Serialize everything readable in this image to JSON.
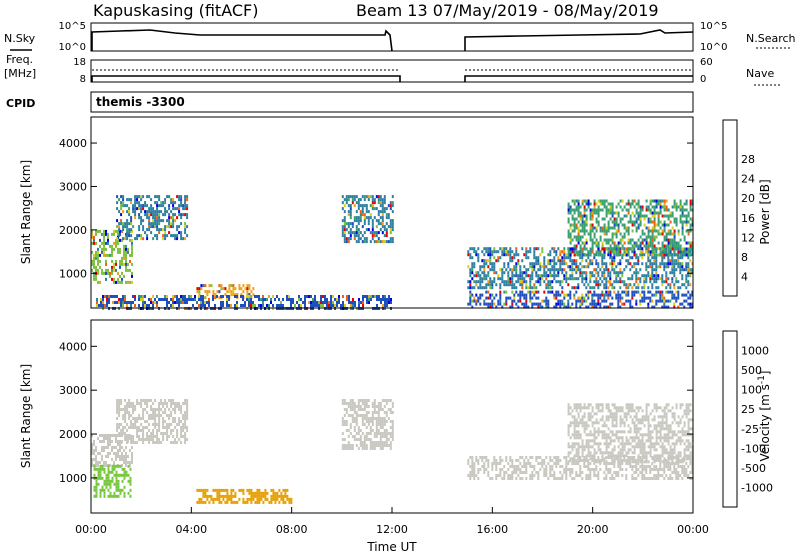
{
  "header": {
    "station": "Kapuskasing (fitACF)",
    "beam_info": "Beam 13 07/May/2019 - 08/May/2019"
  },
  "noise_panel": {
    "left_label": "N.Sky",
    "right_label": "N.Search",
    "left_ticks": [
      "10^5",
      "10^0"
    ],
    "right_ticks": [
      "10^5",
      "10^0"
    ]
  },
  "freq_panel": {
    "left_label_line1": "Freq.",
    "left_label_line2": "[MHz]",
    "right_label": "Nave",
    "left_ticks": [
      "18",
      "8"
    ],
    "right_ticks": [
      "60",
      "0"
    ]
  },
  "cpid": {
    "label": "CPID",
    "value": "themis -3300"
  },
  "chart_data": [
    {
      "type": "heatmap",
      "name": "power",
      "ylabel": "Slant Range [km]",
      "ylim": [
        200,
        4600
      ],
      "y_ticks": [
        1000,
        2000,
        3000,
        4000
      ],
      "colorbar_label": "Power [dB]",
      "colorbar_ticks": [
        "4",
        "8",
        "12",
        "16",
        "20",
        "24",
        "28"
      ],
      "colors": [
        "#0000e6",
        "#1f4fbf",
        "#2e7fa0",
        "#3aa072",
        "#7fc040",
        "#d8d020",
        "#f0a020",
        "#f06010",
        "#e80000"
      ],
      "echo_regions": [
        {
          "t": [
            0.0,
            1.6
          ],
          "range": [
            800,
            2000
          ],
          "level": 20
        },
        {
          "t": [
            1.0,
            3.8
          ],
          "range": [
            1800,
            2800
          ],
          "level": 12
        },
        {
          "t": [
            4.2,
            6.5
          ],
          "range": [
            450,
            750
          ],
          "level": 28
        },
        {
          "t": [
            0.2,
            12.0
          ],
          "range": [
            200,
            500
          ],
          "level": 8
        },
        {
          "t": [
            10.0,
            12.0
          ],
          "range": [
            1700,
            2800
          ],
          "level": 12
        },
        {
          "t": [
            15.0,
            24.0
          ],
          "range": [
            700,
            1600
          ],
          "level": 12
        },
        {
          "t": [
            19.0,
            24.0
          ],
          "range": [
            1400,
            2700
          ],
          "level": 16
        },
        {
          "t": [
            15.0,
            24.0
          ],
          "range": [
            200,
            600
          ],
          "level": 8
        }
      ]
    },
    {
      "type": "heatmap",
      "name": "velocity",
      "ylabel": "Slant Range [km]",
      "xlabel": "Time UT",
      "ylim": [
        200,
        4600
      ],
      "y_ticks": [
        1000,
        2000,
        3000,
        4000
      ],
      "x_ticks": [
        "00:00",
        "04:00",
        "08:00",
        "12:00",
        "16:00",
        "20:00",
        "00:00"
      ],
      "xlim_hours": [
        0,
        24
      ],
      "colorbar_label": "Velocity [m s^-1]",
      "colorbar_ticks": [
        "1000",
        "500",
        "100",
        "25",
        "-25",
        "-100",
        "-500",
        "-1000"
      ],
      "colors": [
        "#1a3aa8",
        "#2f7fa0",
        "#3aa050",
        "#78c840",
        "#c8c8c0",
        "#c8c8c0",
        "#e8a000",
        "#f07010",
        "#e82000"
      ],
      "echo_regions": [
        {
          "t": [
            0.0,
            1.6
          ],
          "range": [
            1300,
            2000
          ],
          "level": 25
        },
        {
          "t": [
            0.1,
            1.6
          ],
          "range": [
            600,
            1300
          ],
          "level": 100
        },
        {
          "t": [
            1.0,
            3.8
          ],
          "range": [
            1800,
            2800
          ],
          "level": 25
        },
        {
          "t": [
            4.2,
            8.0
          ],
          "range": [
            450,
            750
          ],
          "level": -100
        },
        {
          "t": [
            10.0,
            12.0
          ],
          "range": [
            1700,
            2800
          ],
          "level": 25
        },
        {
          "t": [
            15.0,
            24.0
          ],
          "range": [
            1000,
            1500
          ],
          "level": 25
        },
        {
          "t": [
            19.0,
            24.0
          ],
          "range": [
            1400,
            2700
          ],
          "level": 25
        }
      ]
    }
  ]
}
